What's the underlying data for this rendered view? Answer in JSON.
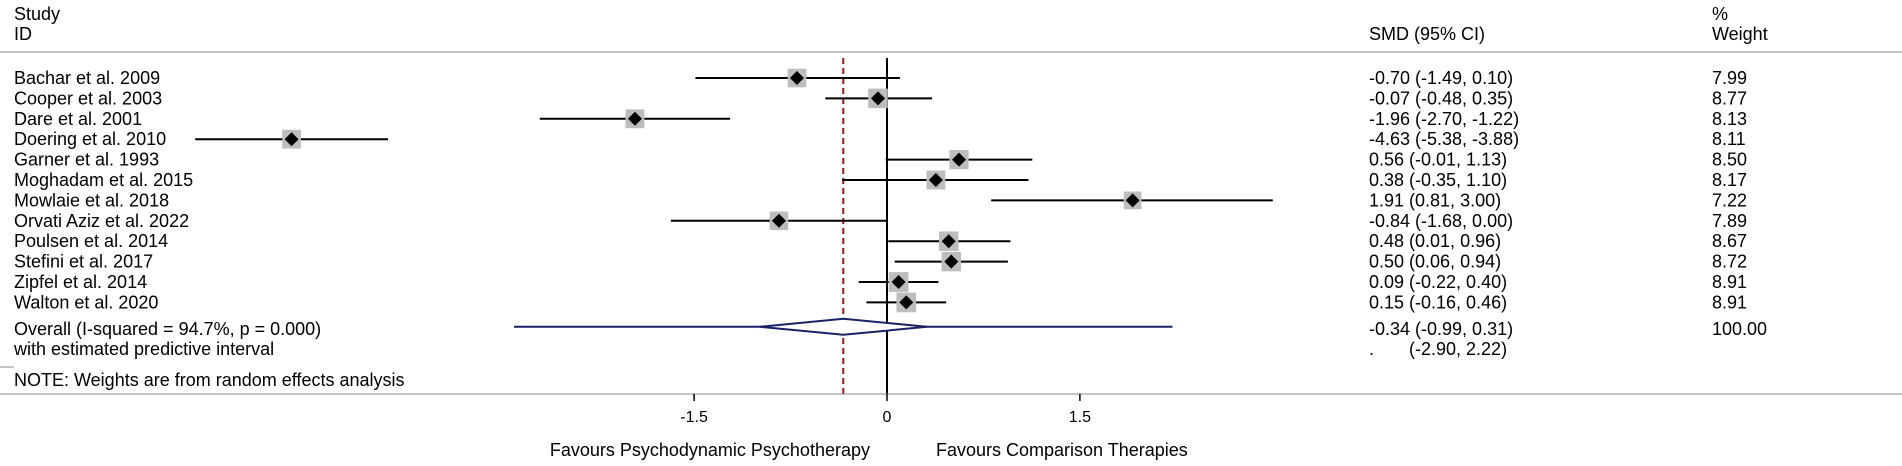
{
  "header": {
    "study_line1": "Study",
    "study_line2": "ID",
    "smd_label": "SMD (95% CI)",
    "weight_line1": "%",
    "weight_line2": "Weight"
  },
  "note": "NOTE: Weights are from random effects analysis",
  "favours_left": "Favours Psychodynamic Psychotherapy",
  "favours_right": "Favours Comparison Therapies",
  "colors": {
    "overall": "#1a2266",
    "reference": "#8b1a1a",
    "box": "#bdbdbd"
  },
  "chart_data": {
    "type": "forest",
    "title": "",
    "xlabel": "",
    "xticks": [
      -1.5,
      0,
      1.5
    ],
    "xtick_labels": [
      "-1.5",
      "0",
      "1.5"
    ],
    "studies": [
      {
        "name": "Bachar et al. 2009",
        "smd": -0.7,
        "lo": -1.49,
        "hi": 0.1,
        "ci_text": "-0.70 (-1.49, 0.10)",
        "weight": 7.99,
        "weight_text": "7.99"
      },
      {
        "name": "Cooper et al. 2003",
        "smd": -0.07,
        "lo": -0.48,
        "hi": 0.35,
        "ci_text": "-0.07 (-0.48, 0.35)",
        "weight": 8.77,
        "weight_text": "8.77"
      },
      {
        "name": "Dare et al. 2001",
        "smd": -1.96,
        "lo": -2.7,
        "hi": -1.22,
        "ci_text": "-1.96 (-2.70, -1.22)",
        "weight": 8.13,
        "weight_text": "8.13"
      },
      {
        "name": "Doering et al. 2010",
        "smd": -4.63,
        "lo": -5.38,
        "hi": -3.88,
        "ci_text": "-4.63 (-5.38, -3.88)",
        "weight": 8.11,
        "weight_text": "8.11"
      },
      {
        "name": "Garner et al. 1993",
        "smd": 0.56,
        "lo": -0.01,
        "hi": 1.13,
        "ci_text": "0.56 (-0.01, 1.13)",
        "weight": 8.5,
        "weight_text": "8.50"
      },
      {
        "name": "Moghadam et al. 2015",
        "smd": 0.38,
        "lo": -0.35,
        "hi": 1.1,
        "ci_text": "0.38 (-0.35, 1.10)",
        "weight": 8.17,
        "weight_text": "8.17"
      },
      {
        "name": "Mowlaie et al. 2018",
        "smd": 1.91,
        "lo": 0.81,
        "hi": 3.0,
        "ci_text": "1.91 (0.81, 3.00)",
        "weight": 7.22,
        "weight_text": "7.22"
      },
      {
        "name": "Orvati Aziz et al. 2022",
        "smd": -0.84,
        "lo": -1.68,
        "hi": 0.0,
        "ci_text": "-0.84 (-1.68, 0.00)",
        "weight": 7.89,
        "weight_text": "7.89"
      },
      {
        "name": "Poulsen et al. 2014",
        "smd": 0.48,
        "lo": 0.01,
        "hi": 0.96,
        "ci_text": "0.48 (0.01, 0.96)",
        "weight": 8.67,
        "weight_text": "8.67"
      },
      {
        "name": "Stefini et al. 2017",
        "smd": 0.5,
        "lo": 0.06,
        "hi": 0.94,
        "ci_text": "0.50 (0.06, 0.94)",
        "weight": 8.72,
        "weight_text": "8.72"
      },
      {
        "name": "Zipfel et al. 2014",
        "smd": 0.09,
        "lo": -0.22,
        "hi": 0.4,
        "ci_text": "0.09 (-0.22, 0.40)",
        "weight": 8.91,
        "weight_text": "8.91"
      },
      {
        "name": "Walton et al. 2020",
        "smd": 0.15,
        "lo": -0.16,
        "hi": 0.46,
        "ci_text": "0.15 (-0.16, 0.46)",
        "weight": 8.91,
        "weight_text": "8.91"
      }
    ],
    "overall": {
      "label": "Overall  (I-squared = 94.7%, p = 0.000)",
      "smd": -0.34,
      "lo": -0.99,
      "hi": 0.31,
      "ci_text": "-0.34 (-0.99, 0.31)",
      "weight_text": "100.00",
      "pi_label": "with estimated predictive interval",
      "pi_lo": -2.9,
      "pi_hi": 2.22,
      "pi_text": ".       (-2.90, 2.22)"
    }
  }
}
